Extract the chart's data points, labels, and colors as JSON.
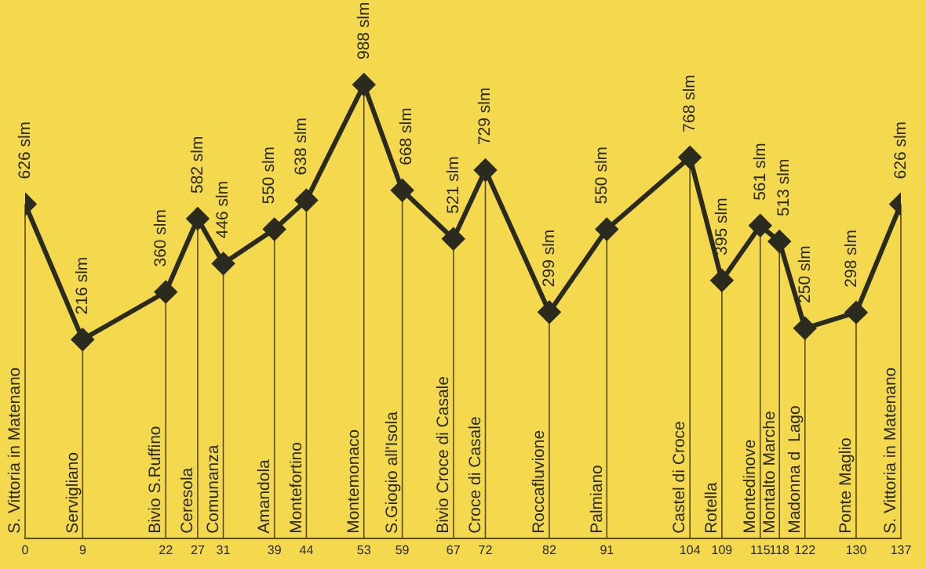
{
  "chart_data": {
    "type": "line",
    "color": "#2b2a1f",
    "grid": "x",
    "marker": "diamond",
    "tick_labels": "x",
    "x": [
      0,
      9,
      22,
      27,
      31,
      39,
      44,
      53,
      59,
      67,
      72,
      82,
      91,
      104,
      109,
      115,
      118,
      122,
      130,
      137
    ],
    "values": [
      626,
      216,
      360,
      582,
      446,
      550,
      638,
      988,
      668,
      521,
      729,
      299,
      550,
      768,
      395,
      561,
      513,
      250,
      298,
      626
    ],
    "value_labels": [
      "626 slm",
      "216 slm",
      "360 slm",
      "582 slm",
      "446 slm",
      "550 slm",
      "638 slm",
      "988 slm",
      "668 slm",
      "521 slm",
      "729 slm",
      "299 slm",
      "550 slm",
      "768 slm",
      "395 slm",
      "561 slm",
      "513 slm",
      "250 slm",
      "298 slm",
      "626 slm"
    ],
    "xlim": [
      0,
      137
    ],
    "xticks": [
      0,
      9,
      22,
      27,
      31,
      39,
      44,
      53,
      59,
      67,
      72,
      82,
      91,
      104,
      109,
      115,
      118,
      122,
      130,
      137
    ],
    "annotations": [
      "S. Vittoria in Matenano",
      "Servigliano",
      "Bivio S.Ruffino",
      "Ceresola",
      "Comunanza",
      "Amandola",
      "Montefortino",
      "Montemonaco",
      "S.Giogio all'Isola",
      "Bivio Croce di Casale",
      "Croce di Casale",
      "Roccafluvione",
      "Palmiano",
      "Castel di Croce",
      "Rotella",
      "Montedinove",
      "Montalto Marche",
      "Madonna d  Lago",
      "Ponte Maglio",
      "S. Vittoria in Matenano"
    ]
  }
}
